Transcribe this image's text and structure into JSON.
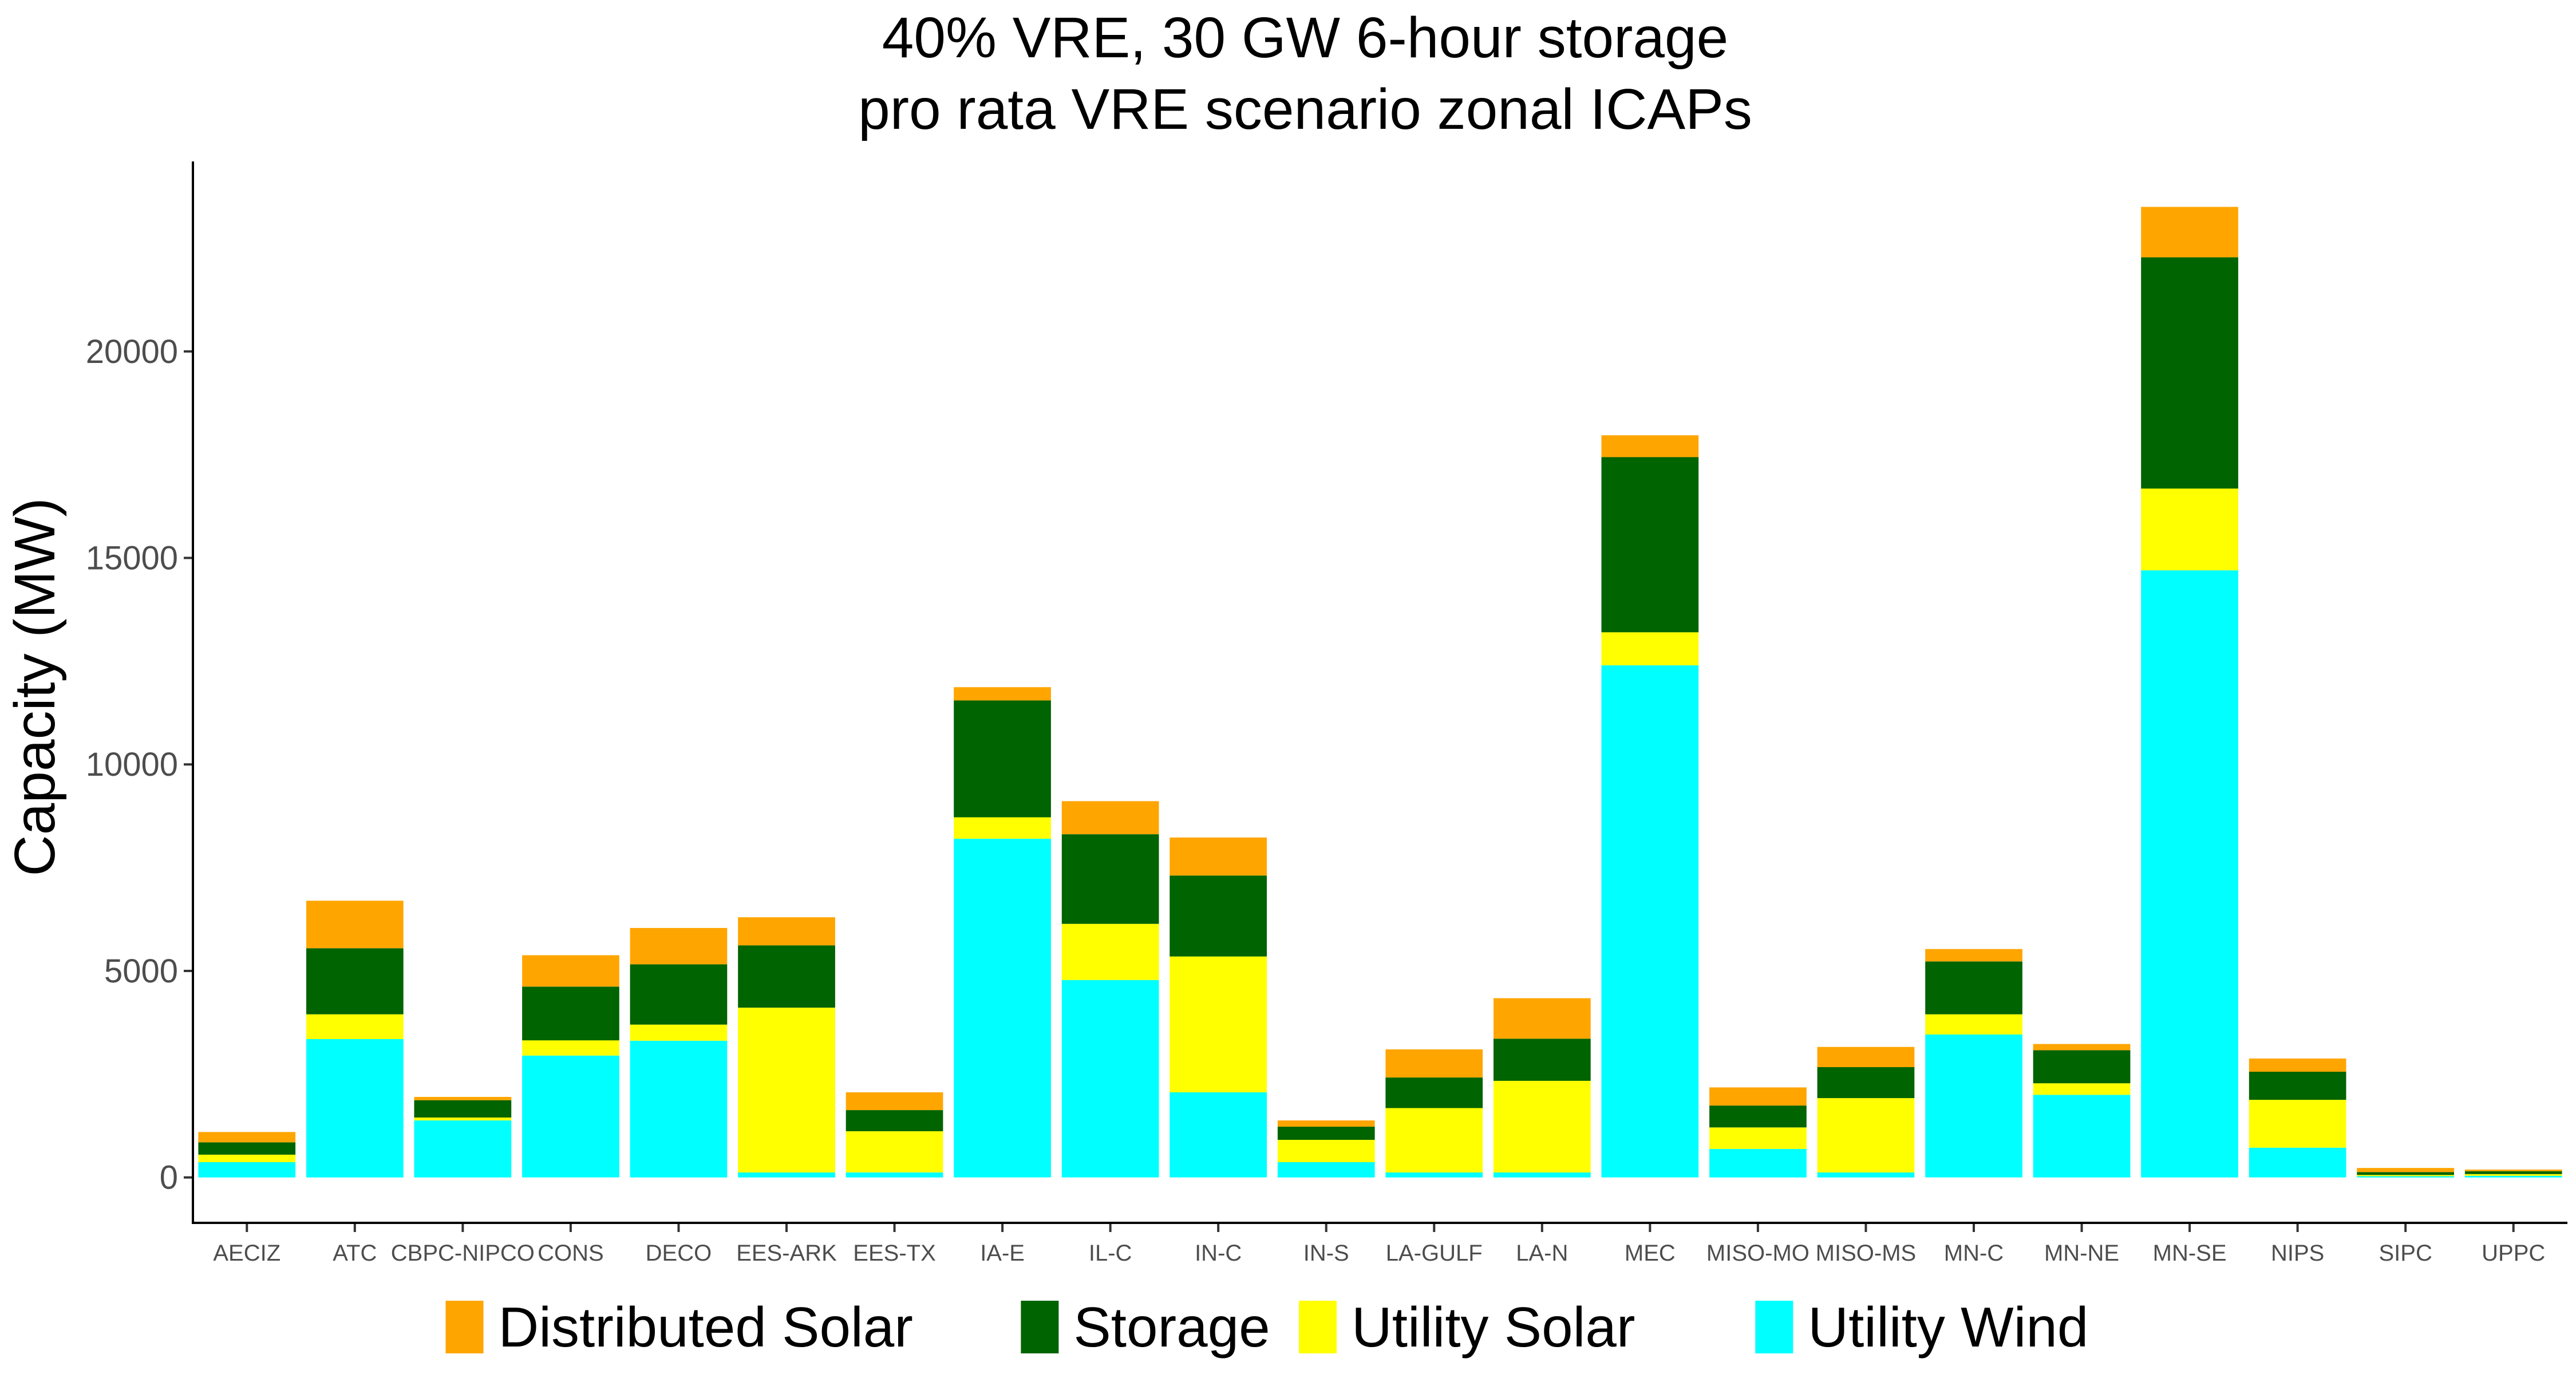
{
  "chart_data": {
    "type": "bar",
    "stacked": true,
    "title_line1": "40% VRE, 30 GW 6-hour storage",
    "title_line2": "pro rata VRE scenario zonal ICAPs",
    "xlabel": "",
    "ylabel": "Capacity (MW)",
    "ylim": [
      -1100,
      24600
    ],
    "yticks": [
      0,
      5000,
      10000,
      15000,
      20000
    ],
    "grid": false,
    "legend_position": "bottom",
    "categories": [
      "AECIZ",
      "ATC",
      "CBPC-NIPCO",
      "CONS",
      "DECO",
      "EES-ARK",
      "EES-TX",
      "IA-E",
      "IL-C",
      "IN-C",
      "IN-S",
      "LA-GULF",
      "LA-N",
      "MEC",
      "MISO-MO",
      "MISO-MS",
      "MN-C",
      "MN-NE",
      "MN-SE",
      "NIPS",
      "SIPC",
      "UPPC"
    ],
    "series": [
      {
        "name": "Utility Wind",
        "color": "#00FFFF",
        "values": [
          370,
          3350,
          1380,
          2950,
          3310,
          120,
          120,
          8200,
          4780,
          2060,
          370,
          120,
          120,
          12400,
          690,
          120,
          3460,
          2000,
          14700,
          720,
          30,
          40
        ]
      },
      {
        "name": "Utility Solar",
        "color": "#FFFF00",
        "values": [
          180,
          600,
          70,
          370,
          390,
          3990,
          1000,
          520,
          1360,
          3290,
          540,
          1560,
          2220,
          800,
          520,
          1800,
          490,
          280,
          1980,
          1160,
          30,
          40
        ]
      },
      {
        "name": "Storage",
        "color": "#006400",
        "values": [
          300,
          1600,
          420,
          1300,
          1460,
          1510,
          510,
          2830,
          2170,
          1960,
          320,
          740,
          1020,
          4240,
          530,
          750,
          1280,
          800,
          5600,
          680,
          70,
          70
        ]
      },
      {
        "name": "Distributed Solar",
        "color": "#FFA500",
        "values": [
          250,
          1150,
          80,
          760,
          880,
          680,
          430,
          320,
          800,
          920,
          150,
          680,
          980,
          530,
          440,
          490,
          300,
          150,
          1220,
          320,
          100,
          40
        ]
      }
    ],
    "legend_order": [
      "Distributed Solar",
      "Storage",
      "Utility Solar",
      "Utility Wind"
    ]
  }
}
